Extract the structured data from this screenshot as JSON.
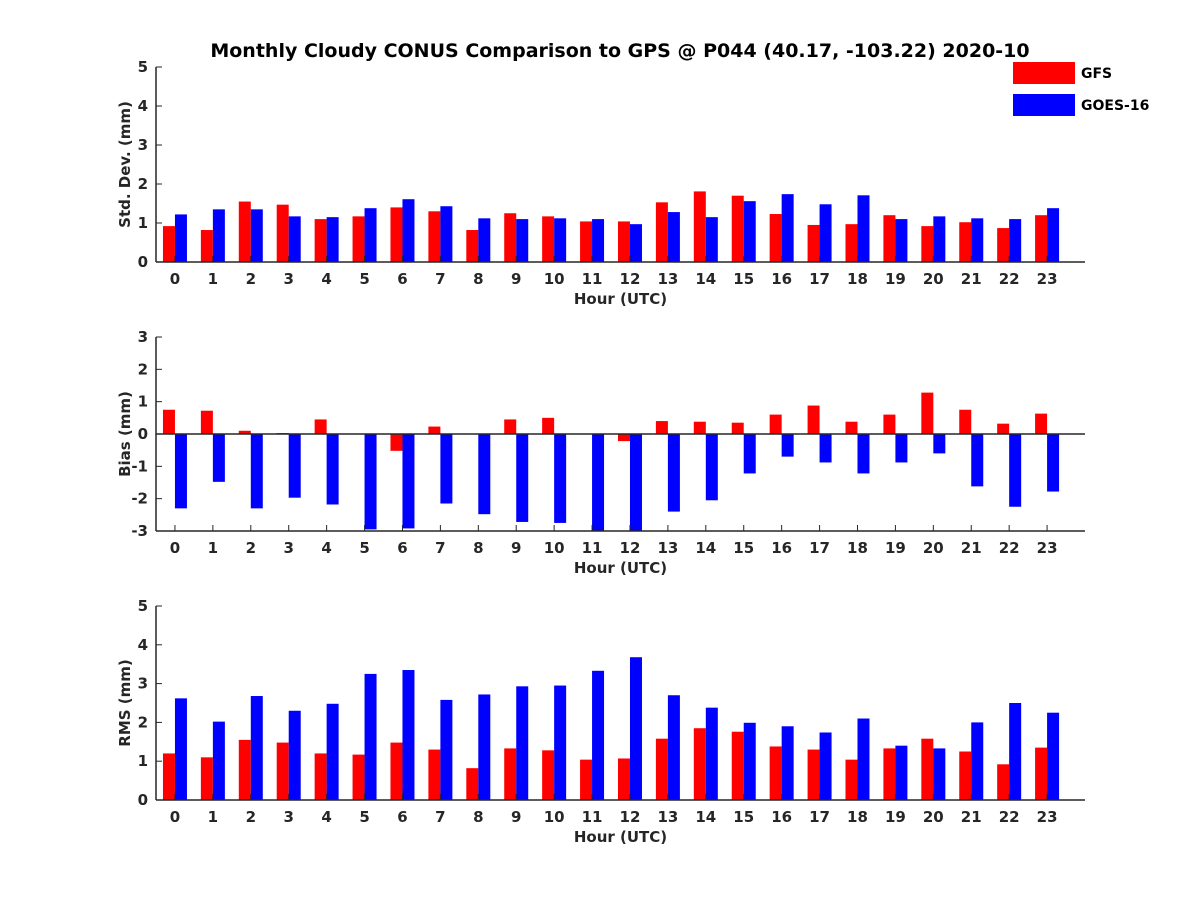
{
  "chart_data": {
    "type": "bar",
    "title": "Monthly Cloudy CONUS Comparison to GPS @ P044 (40.17, -103.22) 2020-10",
    "legend": {
      "placement": "top-right",
      "entries": [
        {
          "name": "GFS",
          "color": "#ff0000"
        },
        {
          "name": "GOES-16",
          "color": "#0000ff"
        }
      ]
    },
    "categories": [
      "0",
      "1",
      "2",
      "3",
      "4",
      "5",
      "6",
      "7",
      "8",
      "9",
      "10",
      "11",
      "12",
      "13",
      "14",
      "15",
      "16",
      "17",
      "18",
      "19",
      "20",
      "21",
      "22",
      "23"
    ],
    "panels": [
      {
        "id": "std",
        "ylabel": "Std. Dev. (mm)",
        "xlabel": "Hour (UTC)",
        "ylim": [
          0,
          5
        ],
        "yticks": [
          0,
          1,
          2,
          3,
          4,
          5
        ],
        "series": [
          {
            "name": "GFS",
            "color": "#ff0000",
            "values": [
              0.92,
              0.82,
              1.55,
              1.47,
              1.1,
              1.17,
              1.4,
              1.3,
              0.82,
              1.25,
              1.17,
              1.04,
              1.04,
              1.53,
              1.81,
              1.7,
              1.23,
              0.95,
              0.97,
              1.2,
              0.92,
              1.02,
              0.87,
              1.2
            ]
          },
          {
            "name": "GOES-16",
            "color": "#0000ff",
            "values": [
              1.22,
              1.35,
              1.35,
              1.17,
              1.15,
              1.38,
              1.61,
              1.43,
              1.12,
              1.1,
              1.12,
              1.1,
              0.97,
              1.28,
              1.15,
              1.56,
              1.74,
              1.48,
              1.71,
              1.1,
              1.17,
              1.12,
              1.1,
              1.38
            ]
          }
        ]
      },
      {
        "id": "bias",
        "ylabel": "Bias (mm)",
        "xlabel": "Hour (UTC)",
        "ylim": [
          -3,
          3
        ],
        "yticks": [
          -3,
          -2,
          -1,
          0,
          1,
          2,
          3
        ],
        "series": [
          {
            "name": "GFS",
            "color": "#ff0000",
            "values": [
              0.75,
              0.72,
              0.1,
              0.03,
              0.45,
              0.0,
              -0.52,
              0.23,
              0.0,
              0.45,
              0.5,
              0.0,
              -0.22,
              0.4,
              0.38,
              0.35,
              0.6,
              0.88,
              0.38,
              0.6,
              1.28,
              0.75,
              0.32,
              0.63
            ]
          },
          {
            "name": "GOES-16",
            "color": "#0000ff",
            "values": [
              -2.3,
              -1.48,
              -2.3,
              -1.97,
              -2.18,
              -2.95,
              -2.92,
              -2.15,
              -2.48,
              -2.72,
              -2.75,
              -3.0,
              -3.0,
              -2.4,
              -2.05,
              -1.22,
              -0.7,
              -0.88,
              -1.22,
              -0.88,
              -0.6,
              -1.62,
              -2.25,
              -1.78
            ]
          }
        ]
      },
      {
        "id": "rms",
        "ylabel": "RMS (mm)",
        "xlabel": "Hour (UTC)",
        "ylim": [
          0,
          5
        ],
        "yticks": [
          0,
          1,
          2,
          3,
          4,
          5
        ],
        "series": [
          {
            "name": "GFS",
            "color": "#ff0000",
            "values": [
              1.2,
              1.1,
              1.55,
              1.48,
              1.2,
              1.17,
              1.48,
              1.3,
              0.82,
              1.33,
              1.28,
              1.04,
              1.07,
              1.58,
              1.85,
              1.76,
              1.38,
              1.3,
              1.04,
              1.33,
              1.58,
              1.25,
              0.92,
              1.35
            ]
          },
          {
            "name": "GOES-16",
            "color": "#0000ff",
            "values": [
              2.62,
              2.02,
              2.68,
              2.3,
              2.48,
              3.25,
              3.35,
              2.58,
              2.72,
              2.93,
              2.95,
              3.33,
              3.68,
              2.7,
              2.38,
              1.99,
              1.9,
              1.74,
              2.1,
              1.4,
              1.33,
              2.0,
              2.5,
              2.25
            ]
          }
        ]
      }
    ]
  }
}
